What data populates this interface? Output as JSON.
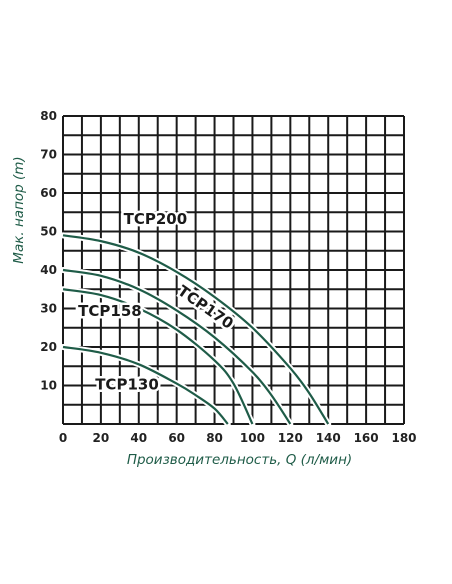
{
  "chart_data": {
    "type": "line",
    "xlabel": "Производительность, Q (л/мин)",
    "ylabel": "Мак. напор (m)",
    "xlim": [
      0,
      180
    ],
    "ylim": [
      0,
      80
    ],
    "x_ticks": [
      "0",
      "20",
      "40",
      "60",
      "80",
      "100",
      "120",
      "140",
      "160",
      "180"
    ],
    "y_ticks": [
      "10",
      "20",
      "30",
      "40",
      "50",
      "60",
      "70",
      "80"
    ],
    "grid": true,
    "series": [
      {
        "name": "TCP200",
        "x": [
          0,
          20,
          40,
          60,
          80,
          100,
          120,
          130,
          140
        ],
        "y": [
          49,
          47.5,
          44.5,
          39.5,
          33,
          25,
          14.5,
          8,
          0
        ]
      },
      {
        "name": "TCP170",
        "x": [
          0,
          20,
          40,
          60,
          80,
          100,
          110,
          120
        ],
        "y": [
          40,
          38.5,
          35,
          29.5,
          22.5,
          13.5,
          7.5,
          0
        ]
      },
      {
        "name": "TCP158",
        "x": [
          0,
          20,
          40,
          60,
          80,
          90,
          100
        ],
        "y": [
          35,
          33.5,
          30,
          24.5,
          16.5,
          10.5,
          0
        ]
      },
      {
        "name": "TCP130",
        "x": [
          0,
          20,
          40,
          60,
          70,
          80,
          87
        ],
        "y": [
          20,
          18.5,
          15.5,
          10.5,
          7.5,
          4,
          0
        ]
      }
    ],
    "colors": {
      "curve": "#1f5c48",
      "grid": "#1a1a1a",
      "axis_title": "#1f5c48"
    }
  }
}
